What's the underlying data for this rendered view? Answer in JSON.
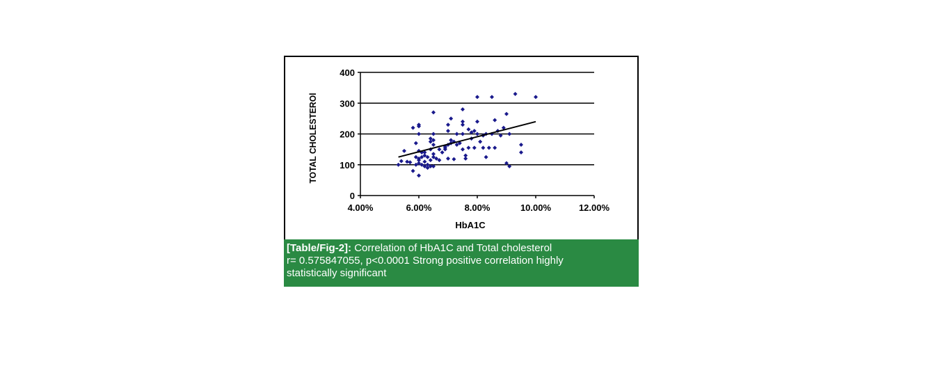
{
  "caption": {
    "label": "[Table/Fig-2]:",
    "title": "Correlation of HbA1C and Total cholesterol",
    "line2": "r= 0.575847055, p<0.0001 Strong positive correlation highly",
    "line3": "statistically significant"
  },
  "colors": {
    "points": "#1a1a8c",
    "caption_bg": "#2a8a43"
  },
  "chart_data": {
    "type": "scatter",
    "title": "",
    "xlabel": "HbA1C",
    "ylabel": "TOTAL CHOLESTEROl",
    "xlim": [
      0.04,
      0.12
    ],
    "ylim": [
      0,
      400
    ],
    "xticks": [
      0.04,
      0.06,
      0.08,
      0.1,
      0.12
    ],
    "xtick_labels": [
      "4.00%",
      "6.00%",
      "8.00%",
      "10.00%",
      "12.00%"
    ],
    "yticks": [
      0,
      100,
      200,
      300,
      400
    ],
    "ytick_labels": [
      "0",
      "100",
      "200",
      "300",
      "400"
    ],
    "grid": "horizontal",
    "trendline": {
      "x": [
        0.053,
        0.1
      ],
      "y": [
        125,
        240
      ]
    },
    "points": [
      [
        0.053,
        100
      ],
      [
        0.054,
        112
      ],
      [
        0.055,
        145
      ],
      [
        0.056,
        110
      ],
      [
        0.057,
        108
      ],
      [
        0.058,
        80
      ],
      [
        0.058,
        220
      ],
      [
        0.059,
        125
      ],
      [
        0.059,
        170
      ],
      [
        0.059,
        100
      ],
      [
        0.06,
        225
      ],
      [
        0.06,
        230
      ],
      [
        0.06,
        200
      ],
      [
        0.06,
        145
      ],
      [
        0.06,
        120
      ],
      [
        0.06,
        115
      ],
      [
        0.06,
        105
      ],
      [
        0.06,
        65
      ],
      [
        0.061,
        140
      ],
      [
        0.061,
        125
      ],
      [
        0.061,
        100
      ],
      [
        0.062,
        130
      ],
      [
        0.062,
        95
      ],
      [
        0.062,
        140
      ],
      [
        0.062,
        110
      ],
      [
        0.063,
        100
      ],
      [
        0.063,
        125
      ],
      [
        0.063,
        90
      ],
      [
        0.064,
        150
      ],
      [
        0.064,
        185
      ],
      [
        0.064,
        175
      ],
      [
        0.064,
        115
      ],
      [
        0.064,
        95
      ],
      [
        0.065,
        270
      ],
      [
        0.065,
        200
      ],
      [
        0.065,
        180
      ],
      [
        0.065,
        165
      ],
      [
        0.065,
        135
      ],
      [
        0.065,
        125
      ],
      [
        0.065,
        95
      ],
      [
        0.066,
        120
      ],
      [
        0.067,
        150
      ],
      [
        0.067,
        115
      ],
      [
        0.068,
        140
      ],
      [
        0.069,
        155
      ],
      [
        0.069,
        150
      ],
      [
        0.069,
        160
      ],
      [
        0.07,
        210
      ],
      [
        0.07,
        230
      ],
      [
        0.07,
        165
      ],
      [
        0.07,
        120
      ],
      [
        0.071,
        250
      ],
      [
        0.071,
        180
      ],
      [
        0.071,
        170
      ],
      [
        0.072,
        175
      ],
      [
        0.072,
        118
      ],
      [
        0.073,
        200
      ],
      [
        0.073,
        165
      ],
      [
        0.074,
        170
      ],
      [
        0.075,
        280
      ],
      [
        0.075,
        240
      ],
      [
        0.075,
        230
      ],
      [
        0.075,
        200
      ],
      [
        0.075,
        150
      ],
      [
        0.076,
        130
      ],
      [
        0.076,
        120
      ],
      [
        0.077,
        215
      ],
      [
        0.077,
        155
      ],
      [
        0.078,
        205
      ],
      [
        0.078,
        185
      ],
      [
        0.079,
        210
      ],
      [
        0.079,
        155
      ],
      [
        0.08,
        320
      ],
      [
        0.08,
        240
      ],
      [
        0.08,
        200
      ],
      [
        0.081,
        175
      ],
      [
        0.082,
        155
      ],
      [
        0.082,
        195
      ],
      [
        0.083,
        200
      ],
      [
        0.083,
        125
      ],
      [
        0.084,
        155
      ],
      [
        0.085,
        320
      ],
      [
        0.085,
        200
      ],
      [
        0.086,
        245
      ],
      [
        0.086,
        155
      ],
      [
        0.087,
        210
      ],
      [
        0.088,
        195
      ],
      [
        0.089,
        220
      ],
      [
        0.09,
        265
      ],
      [
        0.09,
        105
      ],
      [
        0.091,
        200
      ],
      [
        0.091,
        95
      ],
      [
        0.093,
        330
      ],
      [
        0.095,
        165
      ],
      [
        0.095,
        140
      ],
      [
        0.1,
        320
      ]
    ]
  }
}
